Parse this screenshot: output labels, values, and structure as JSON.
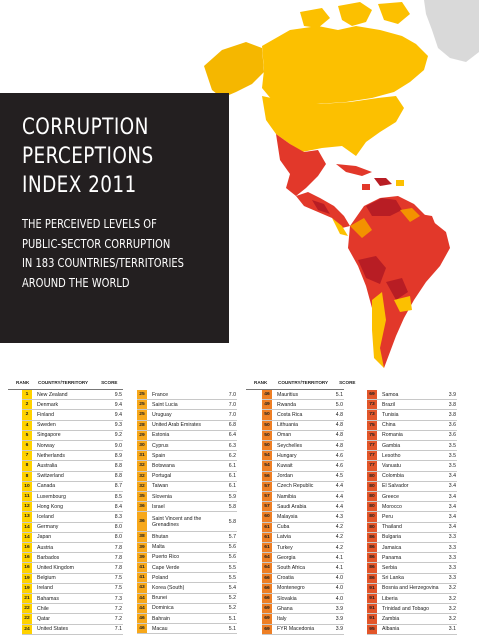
{
  "title": {
    "lines": [
      "CORRUPTION",
      "PERCEPTIONS",
      "INDEX 2011"
    ],
    "subtitle_lines": [
      "THE PERCEIVED LEVELS OF",
      "PUBLIC-SECTOR CORRUPTION",
      "IN 183 COUNTRIES/TERRITORIES",
      "AROUND THE WORLD"
    ]
  },
  "table": {
    "headers": {
      "rank": "RANK",
      "country": "COUNTRY/TERRITORY",
      "score": "SCORE"
    },
    "columns": [
      {
        "rows": [
          {
            "rank": "1",
            "country": "New Zealand",
            "score": "9.5"
          },
          {
            "rank": "2",
            "country": "Denmark",
            "score": "9.4"
          },
          {
            "rank": "2",
            "country": "Finland",
            "score": "9.4"
          },
          {
            "rank": "4",
            "country": "Sweden",
            "score": "9.3"
          },
          {
            "rank": "5",
            "country": "Singapore",
            "score": "9.2"
          },
          {
            "rank": "6",
            "country": "Norway",
            "score": "9.0"
          },
          {
            "rank": "7",
            "country": "Netherlands",
            "score": "8.9"
          },
          {
            "rank": "8",
            "country": "Australia",
            "score": "8.8"
          },
          {
            "rank": "8",
            "country": "Switzerland",
            "score": "8.8"
          },
          {
            "rank": "10",
            "country": "Canada",
            "score": "8.7"
          },
          {
            "rank": "11",
            "country": "Luxembourg",
            "score": "8.5"
          },
          {
            "rank": "12",
            "country": "Hong Kong",
            "score": "8.4"
          },
          {
            "rank": "13",
            "country": "Iceland",
            "score": "8.3"
          },
          {
            "rank": "14",
            "country": "Germany",
            "score": "8.0"
          },
          {
            "rank": "14",
            "country": "Japan",
            "score": "8.0"
          },
          {
            "rank": "16",
            "country": "Austria",
            "score": "7.8"
          },
          {
            "rank": "16",
            "country": "Barbados",
            "score": "7.8"
          },
          {
            "rank": "16",
            "country": "United Kingdom",
            "score": "7.8"
          },
          {
            "rank": "19",
            "country": "Belgium",
            "score": "7.5"
          },
          {
            "rank": "19",
            "country": "Ireland",
            "score": "7.5"
          },
          {
            "rank": "21",
            "country": "Bahamas",
            "score": "7.3"
          },
          {
            "rank": "22",
            "country": "Chile",
            "score": "7.2"
          },
          {
            "rank": "22",
            "country": "Qatar",
            "score": "7.2"
          },
          {
            "rank": "24",
            "country": "United States",
            "score": "7.1"
          }
        ]
      },
      {
        "rows": [
          {
            "rank": "25",
            "country": "France",
            "score": "7.0"
          },
          {
            "rank": "25",
            "country": "Saint Lucia",
            "score": "7.0"
          },
          {
            "rank": "25",
            "country": "Uruguay",
            "score": "7.0"
          },
          {
            "rank": "28",
            "country": "United Arab Emirates",
            "score": "6.8"
          },
          {
            "rank": "29",
            "country": "Estonia",
            "score": "6.4"
          },
          {
            "rank": "30",
            "country": "Cyprus",
            "score": "6.3"
          },
          {
            "rank": "31",
            "country": "Spain",
            "score": "6.2"
          },
          {
            "rank": "32",
            "country": "Botswana",
            "score": "6.1"
          },
          {
            "rank": "32",
            "country": "Portugal",
            "score": "6.1"
          },
          {
            "rank": "32",
            "country": "Taiwan",
            "score": "6.1"
          },
          {
            "rank": "35",
            "country": "Slovenia",
            "score": "5.9"
          },
          {
            "rank": "36",
            "country": "Israel",
            "score": "5.8"
          },
          {
            "rank": "36",
            "country": "Saint Vincent and the Grenadines",
            "score": "5.8",
            "tall": true
          },
          {
            "rank": "38",
            "country": "Bhutan",
            "score": "5.7"
          },
          {
            "rank": "39",
            "country": "Malta",
            "score": "5.6"
          },
          {
            "rank": "39",
            "country": "Puerto Rico",
            "score": "5.6"
          },
          {
            "rank": "41",
            "country": "Cape Verde",
            "score": "5.5"
          },
          {
            "rank": "41",
            "country": "Poland",
            "score": "5.5"
          },
          {
            "rank": "43",
            "country": "Korea (South)",
            "score": "5.4"
          },
          {
            "rank": "44",
            "country": "Brunei",
            "score": "5.2"
          },
          {
            "rank": "44",
            "country": "Dominica",
            "score": "5.2"
          },
          {
            "rank": "46",
            "country": "Bahrain",
            "score": "5.1"
          },
          {
            "rank": "46",
            "country": "Macau",
            "score": "5.1"
          }
        ]
      },
      {
        "rows": [
          {
            "rank": "46",
            "country": "Mauritius",
            "score": "5.1"
          },
          {
            "rank": "49",
            "country": "Rwanda",
            "score": "5.0"
          },
          {
            "rank": "50",
            "country": "Costa Rica",
            "score": "4.8"
          },
          {
            "rank": "50",
            "country": "Lithuania",
            "score": "4.8"
          },
          {
            "rank": "50",
            "country": "Oman",
            "score": "4.8"
          },
          {
            "rank": "50",
            "country": "Seychelles",
            "score": "4.8"
          },
          {
            "rank": "54",
            "country": "Hungary",
            "score": "4.6"
          },
          {
            "rank": "54",
            "country": "Kuwait",
            "score": "4.6"
          },
          {
            "rank": "56",
            "country": "Jordan",
            "score": "4.5"
          },
          {
            "rank": "57",
            "country": "Czech Republic",
            "score": "4.4"
          },
          {
            "rank": "57",
            "country": "Namibia",
            "score": "4.4"
          },
          {
            "rank": "57",
            "country": "Saudi Arabia",
            "score": "4.4"
          },
          {
            "rank": "60",
            "country": "Malaysia",
            "score": "4.3"
          },
          {
            "rank": "61",
            "country": "Cuba",
            "score": "4.2"
          },
          {
            "rank": "61",
            "country": "Latvia",
            "score": "4.2"
          },
          {
            "rank": "61",
            "country": "Turkey",
            "score": "4.2"
          },
          {
            "rank": "64",
            "country": "Georgia",
            "score": "4.1"
          },
          {
            "rank": "64",
            "country": "South Africa",
            "score": "4.1"
          },
          {
            "rank": "66",
            "country": "Croatia",
            "score": "4.0"
          },
          {
            "rank": "66",
            "country": "Montenegro",
            "score": "4.0"
          },
          {
            "rank": "66",
            "country": "Slovakia",
            "score": "4.0"
          },
          {
            "rank": "69",
            "country": "Ghana",
            "score": "3.9"
          },
          {
            "rank": "69",
            "country": "Italy",
            "score": "3.9"
          },
          {
            "rank": "69",
            "country": "FYR Macedonia",
            "score": "3.9"
          }
        ]
      },
      {
        "rows": [
          {
            "rank": "69",
            "country": "Samoa",
            "score": "3.9"
          },
          {
            "rank": "73",
            "country": "Brazil",
            "score": "3.8"
          },
          {
            "rank": "73",
            "country": "Tunisia",
            "score": "3.8"
          },
          {
            "rank": "75",
            "country": "China",
            "score": "3.6"
          },
          {
            "rank": "75",
            "country": "Romania",
            "score": "3.6"
          },
          {
            "rank": "77",
            "country": "Gambia",
            "score": "3.5"
          },
          {
            "rank": "77",
            "country": "Lesotho",
            "score": "3.5"
          },
          {
            "rank": "77",
            "country": "Vanuatu",
            "score": "3.5"
          },
          {
            "rank": "80",
            "country": "Colombia",
            "score": "3.4"
          },
          {
            "rank": "80",
            "country": "El Salvador",
            "score": "3.4"
          },
          {
            "rank": "80",
            "country": "Greece",
            "score": "3.4"
          },
          {
            "rank": "80",
            "country": "Morocco",
            "score": "3.4"
          },
          {
            "rank": "80",
            "country": "Peru",
            "score": "3.4"
          },
          {
            "rank": "80",
            "country": "Thailand",
            "score": "3.4"
          },
          {
            "rank": "86",
            "country": "Bulgaria",
            "score": "3.3"
          },
          {
            "rank": "86",
            "country": "Jamaica",
            "score": "3.3"
          },
          {
            "rank": "86",
            "country": "Panama",
            "score": "3.3"
          },
          {
            "rank": "86",
            "country": "Serbia",
            "score": "3.3"
          },
          {
            "rank": "86",
            "country": "Sri Lanka",
            "score": "3.3"
          },
          {
            "rank": "91",
            "country": "Bosnia and Herzegovina",
            "score": "3.2"
          },
          {
            "rank": "91",
            "country": "Liberia",
            "score": "3.2"
          },
          {
            "rank": "91",
            "country": "Trinidad and Tobago",
            "score": "3.2"
          },
          {
            "rank": "91",
            "country": "Zambia",
            "score": "3.2"
          },
          {
            "rank": "95",
            "country": "Albania",
            "score": "3.1"
          }
        ]
      }
    ]
  },
  "colors": {
    "title_bg": "#231f20",
    "rank_1_25": "#ffd200",
    "rank_25_48": "#f7a81b",
    "rank_46_72": "#ee7f25",
    "rank_69_95": "#e2562a",
    "map_yellow": "#fcc000",
    "map_orange": "#f39200",
    "map_red": "#e2382a",
    "map_darkred": "#b81d24"
  }
}
